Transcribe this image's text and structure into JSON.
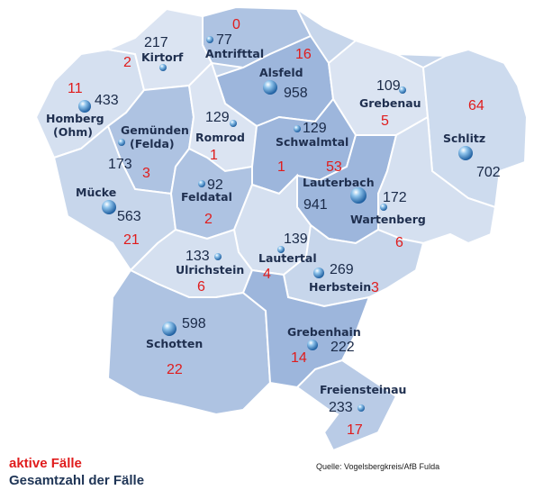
{
  "legend": {
    "active_label": "aktive Fälle",
    "total_label": "Gesamtzahl der Fälle",
    "active_color": "#e01c1c",
    "total_color": "#1f3556"
  },
  "source": "Quelle: Vogelsbergkreis/AfB Fulda",
  "municipalities": [
    {
      "id": "antrifttal",
      "name": "Antrifttal",
      "total": "77",
      "active": "0",
      "tone": "mid"
    },
    {
      "id": "kirtorf",
      "name": "Kirtorf",
      "total": "217",
      "active": "2",
      "tone": "light"
    },
    {
      "id": "alsfeld",
      "name": "Alsfeld",
      "total": "958",
      "active": "16",
      "tone": "dark"
    },
    {
      "id": "grebenau",
      "name": "Grebenau",
      "total": "109",
      "active": "5",
      "tone": "light"
    },
    {
      "id": "homberg",
      "name": "Homberg\n(Ohm)",
      "total": "433",
      "active": "11",
      "tone": "light"
    },
    {
      "id": "gemuenden",
      "name": "Gemünden\n(Felda)",
      "total": "173",
      "active": "3",
      "tone": "mid"
    },
    {
      "id": "romrod",
      "name": "Romrod",
      "total": "129",
      "active": "1",
      "tone": "light"
    },
    {
      "id": "schwalmtal",
      "name": "Schwalmtal",
      "total": "129",
      "active": "1",
      "tone": "dark"
    },
    {
      "id": "schlitz",
      "name": "Schlitz",
      "total": "702",
      "active": "64",
      "tone": "light"
    },
    {
      "id": "lauterbach",
      "name": "Lauterbach",
      "total": "941",
      "active": "53",
      "tone": "dark"
    },
    {
      "id": "feldatal",
      "name": "Feldatal",
      "total": "92",
      "active": "2",
      "tone": "mid"
    },
    {
      "id": "muecke",
      "name": "Mücke",
      "total": "563",
      "active": "21",
      "tone": "light"
    },
    {
      "id": "wartenberg",
      "name": "Wartenberg",
      "total": "172",
      "active": "6",
      "tone": "light"
    },
    {
      "id": "lautertal",
      "name": "Lautertal",
      "total": "139",
      "active": "4",
      "tone": "light"
    },
    {
      "id": "ulrichstein",
      "name": "Ulrichstein",
      "total": "133",
      "active": "6",
      "tone": "light"
    },
    {
      "id": "herbstein",
      "name": "Herbstein",
      "total": "269",
      "active": "3",
      "tone": "light"
    },
    {
      "id": "schotten",
      "name": "Schotten",
      "total": "598",
      "active": "22",
      "tone": "mid"
    },
    {
      "id": "grebenhain",
      "name": "Grebenhain",
      "total": "222",
      "active": "14",
      "tone": "dark"
    },
    {
      "id": "freiensteinau",
      "name": "Freiensteinau",
      "total": "233",
      "active": "17",
      "tone": "mid"
    }
  ]
}
